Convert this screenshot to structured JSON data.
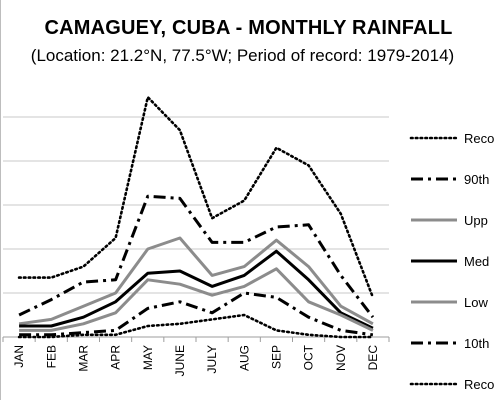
{
  "chart_data": {
    "type": "line",
    "title": "CAMAGUEY, CUBA - MONTHLY RAINFALL",
    "subtitle": "(Location: 21.2°N, 77.5°W; Period of record: 1979-2014)",
    "categories": [
      "JAN",
      "FEB",
      "MAR",
      "APR",
      "MAY",
      "JUNE",
      "JULY",
      "AUG",
      "SEP",
      "OCT",
      "NOV",
      "DEC"
    ],
    "ylim": [
      0,
      550
    ],
    "grid": true,
    "legend_position": "right",
    "series": [
      {
        "name": "Reco",
        "style": "dotted",
        "color": "#000000",
        "values": [
          135,
          135,
          160,
          225,
          545,
          470,
          270,
          310,
          430,
          390,
          280,
          90
        ]
      },
      {
        "name": "90th",
        "style": "dashdot",
        "color": "#000000",
        "values": [
          50,
          85,
          125,
          130,
          320,
          315,
          215,
          215,
          250,
          255,
          140,
          45
        ]
      },
      {
        "name": "Upp",
        "style": "solid",
        "color": "#8c8c8c",
        "values": [
          30,
          40,
          70,
          100,
          200,
          225,
          140,
          160,
          220,
          160,
          70,
          30
        ]
      },
      {
        "name": "Med",
        "style": "solid",
        "color": "#000000",
        "values": [
          25,
          25,
          45,
          80,
          145,
          150,
          115,
          140,
          195,
          130,
          55,
          20
        ]
      },
      {
        "name": "Low",
        "style": "solid",
        "color": "#8c8c8c",
        "values": [
          15,
          15,
          30,
          55,
          130,
          120,
          95,
          115,
          155,
          80,
          50,
          15
        ]
      },
      {
        "name": "10th",
        "style": "dashdot",
        "color": "#000000",
        "values": [
          5,
          5,
          10,
          15,
          65,
          80,
          55,
          100,
          90,
          45,
          15,
          5
        ]
      },
      {
        "name": "Reco",
        "style": "dotted",
        "color": "#000000",
        "values": [
          0,
          0,
          5,
          5,
          25,
          30,
          40,
          50,
          15,
          5,
          0,
          0
        ]
      }
    ]
  }
}
